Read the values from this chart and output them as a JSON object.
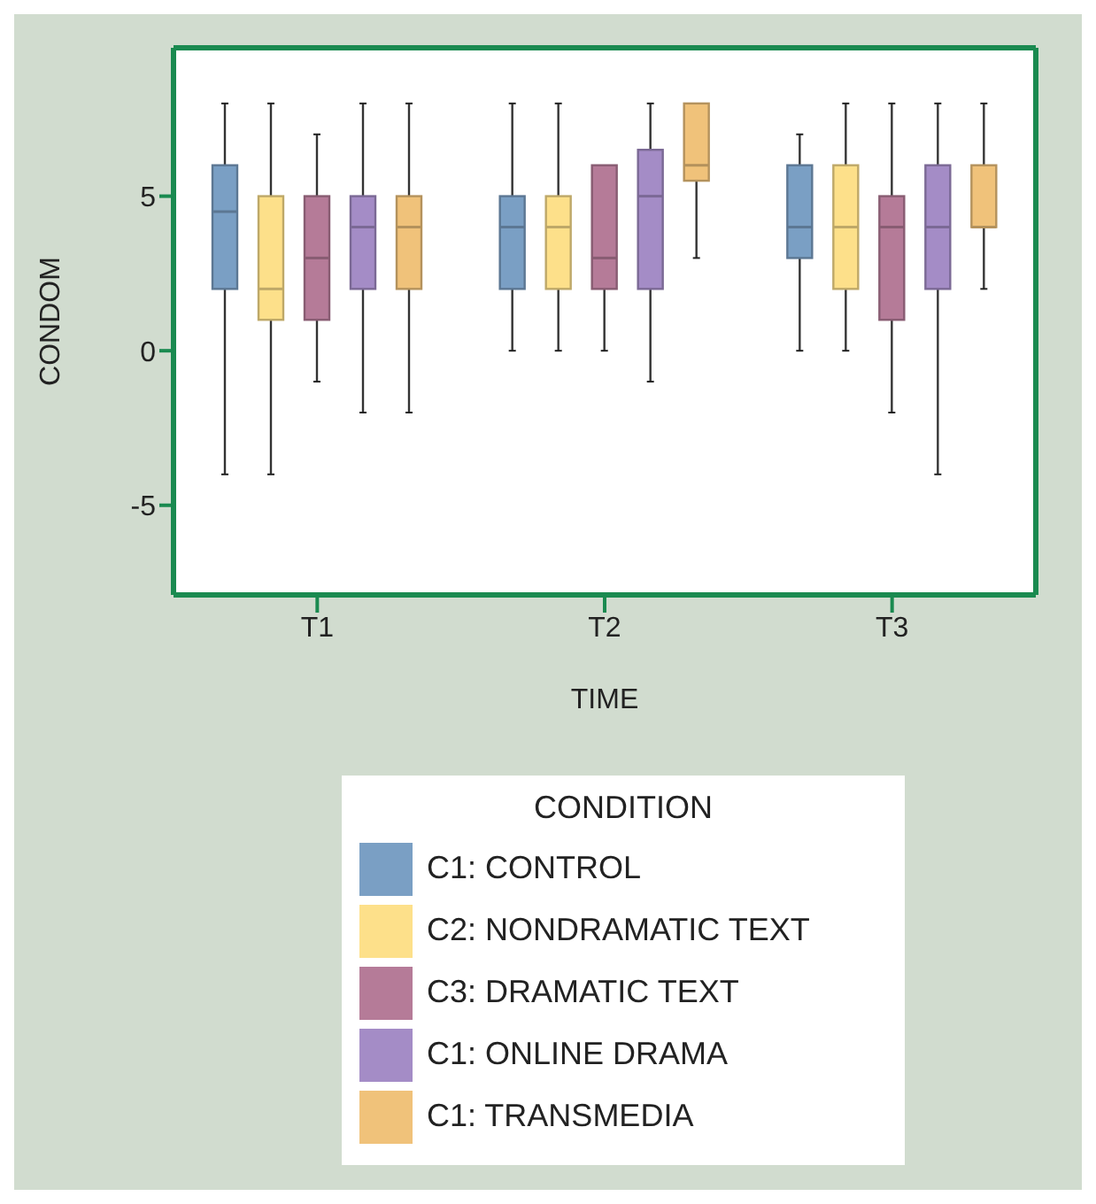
{
  "chart_data": {
    "type": "box",
    "xlabel": "TIME",
    "ylabel": "CONDOM",
    "legend_title": "CONDITION",
    "categories": [
      "T1",
      "T2",
      "T3"
    ],
    "ylim": [
      -7.9,
      9.8
    ],
    "yticks": [
      -5,
      0,
      5
    ],
    "grid": false,
    "legend": "bottom",
    "series": [
      {
        "name": "C1: CONTROL",
        "color": "#7a9fc4",
        "boxes": [
          {
            "low": -4,
            "q1": 2,
            "median": 4.5,
            "q3": 6,
            "high": 8
          },
          {
            "low": 0,
            "q1": 2,
            "median": 4,
            "q3": 5,
            "high": 8
          },
          {
            "low": 0,
            "q1": 3,
            "median": 4,
            "q3": 6,
            "high": 7
          }
        ]
      },
      {
        "name": "C2: NONDRAMATIC TEXT",
        "color": "#fde08a",
        "boxes": [
          {
            "low": -4,
            "q1": 1,
            "median": 2,
            "q3": 5,
            "high": 8
          },
          {
            "low": 0,
            "q1": 2,
            "median": 4,
            "q3": 5,
            "high": 8
          },
          {
            "low": 0,
            "q1": 2,
            "median": 4,
            "q3": 6,
            "high": 8
          }
        ]
      },
      {
        "name": "C3: DRAMATIC TEXT",
        "color": "#b57b98",
        "boxes": [
          {
            "low": -1,
            "q1": 1,
            "median": 3,
            "q3": 5,
            "high": 7
          },
          {
            "low": 0,
            "q1": 2,
            "median": 3,
            "q3": 6,
            "high": 6
          },
          {
            "low": -2,
            "q1": 1,
            "median": 4,
            "q3": 5,
            "high": 8
          }
        ]
      },
      {
        "name": "C1: ONLINE DRAMA",
        "color": "#a48cc6",
        "boxes": [
          {
            "low": -2,
            "q1": 2,
            "median": 4,
            "q3": 5,
            "high": 8
          },
          {
            "low": -1,
            "q1": 2,
            "median": 5,
            "q3": 6.5,
            "high": 8
          },
          {
            "low": -4,
            "q1": 2,
            "median": 4,
            "q3": 6,
            "high": 8
          }
        ]
      },
      {
        "name": "C1: TRANSMEDIA",
        "color": "#f0c27a",
        "boxes": [
          {
            "low": -2,
            "q1": 2,
            "median": 4,
            "q3": 5,
            "high": 8
          },
          {
            "low": 3,
            "q1": 5.5,
            "median": 6,
            "q3": 8,
            "high": 8
          },
          {
            "low": 2,
            "q1": 4,
            "median": 4,
            "q3": 6,
            "high": 8
          }
        ]
      }
    ]
  }
}
